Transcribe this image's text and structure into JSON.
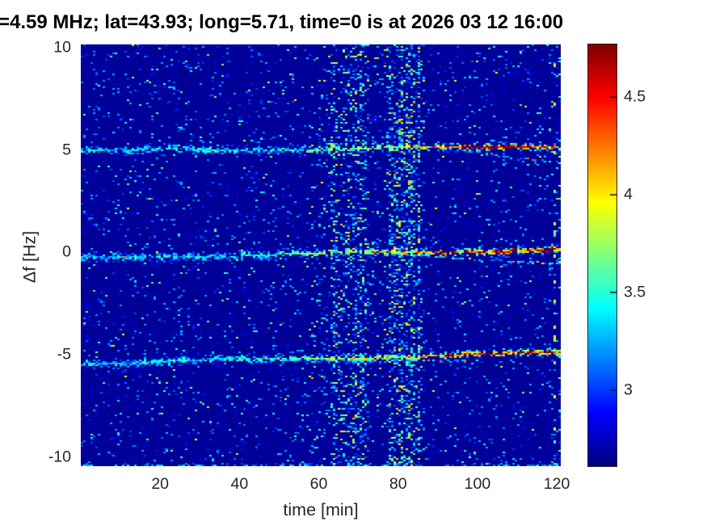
{
  "title": "=4.59 MHz;  lat=43.93; long=5.71, time=0 is at 2026 03 12 16:00",
  "colors": {
    "figure_background": "#ffffff",
    "plot_base_navy": "#000096",
    "title_text": "#000000",
    "axis_text": "#262626"
  },
  "chart_data": {
    "type": "heatmap",
    "title": "=4.59 MHz;  lat=43.93; long=5.71, time=0 is at 2026 03 12 16:00",
    "xlabel": "time [min]",
    "ylabel": "Δf [Hz]",
    "xlim": [
      0,
      121
    ],
    "ylim": [
      -10.45,
      10.15
    ],
    "xticks": [
      20,
      40,
      60,
      80,
      100,
      120
    ],
    "yticks": [
      10,
      5,
      0,
      -5,
      -10
    ],
    "grid": false,
    "colormap": "jet",
    "colorbar": {
      "position": "right",
      "ticks": [
        4.5,
        4,
        3.5,
        3
      ],
      "vmin": 2.61,
      "vmax": 4.77
    },
    "background_value": 2.66,
    "doppler_traces": [
      {
        "name": "upper-trace-+5Hz",
        "f_at_0": 4.93,
        "f_at_end": 5.18,
        "wiggle": 0.06,
        "hot_from_min": 44,
        "dense_from_min": 88,
        "branch": {
          "from_min": 88,
          "to_min": 121,
          "delta_hz": -0.75
        }
      },
      {
        "name": "center-trace-0Hz",
        "f_at_0": -0.3,
        "f_at_end": 0.12,
        "wiggle": 0.05,
        "hot_from_min": 34,
        "dense_from_min": 80,
        "branch": {
          "from_min": 78,
          "to_min": 121,
          "delta_hz": -0.7
        }
      },
      {
        "name": "lower-trace--5Hz",
        "f_at_0": -5.42,
        "f_at_end": -4.92,
        "wiggle": 0.05,
        "hot_from_min": 27,
        "dense_from_min": 84,
        "branch": {
          "from_min": 55,
          "to_min": 100,
          "delta_hz": -0.3
        }
      }
    ],
    "noise_bands_min": [
      {
        "from_min": 57,
        "to_min": 62.5,
        "density": 0.12
      },
      {
        "from_min": 62.5,
        "to_min": 73,
        "density": 0.5
      },
      {
        "from_min": 73,
        "to_min": 76.5,
        "density": 0.08
      },
      {
        "from_min": 76.5,
        "to_min": 86.5,
        "density": 0.55
      }
    ],
    "dashed_column_min": 119.5,
    "bottom_edge_noise": true
  }
}
